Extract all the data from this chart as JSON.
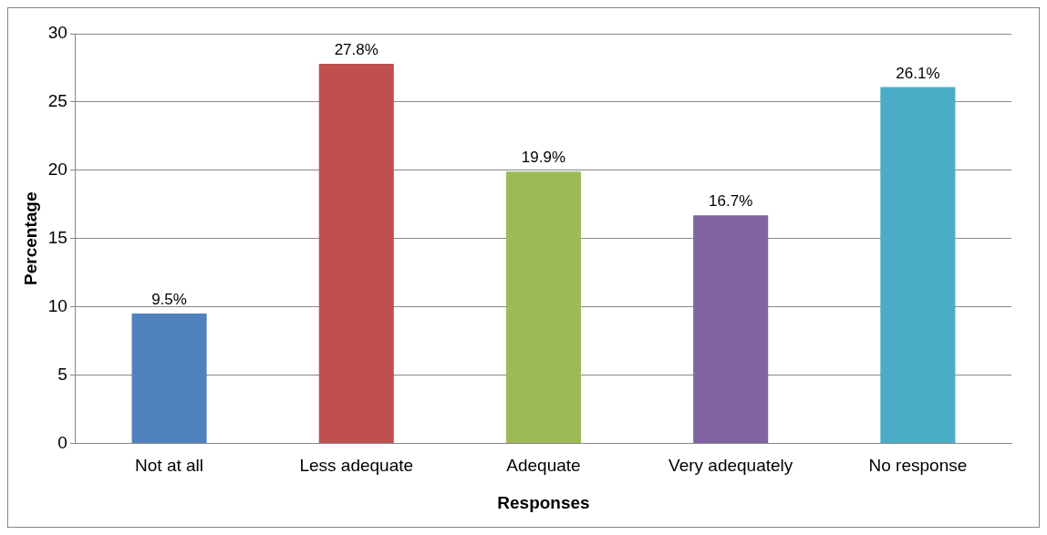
{
  "chart_data": {
    "type": "bar",
    "xlabel": "Responses",
    "ylabel": "Percentage",
    "categories": [
      "Not at all",
      "Less adequate",
      "Adequate",
      "Very adequately",
      "No response"
    ],
    "values": [
      9.5,
      27.8,
      19.9,
      16.7,
      26.1
    ],
    "colors": [
      "#4f81bd",
      "#c0504d",
      "#9bbb59",
      "#8064a2",
      "#4bacc6"
    ],
    "value_labels": [
      "9.5%",
      "27.8%",
      "19.9%",
      "16.7%",
      "26.1%"
    ],
    "ylim": [
      0,
      30
    ],
    "yticks": [
      0,
      5,
      10,
      15,
      20,
      25,
      30
    ],
    "grid": "y",
    "legend": false
  }
}
